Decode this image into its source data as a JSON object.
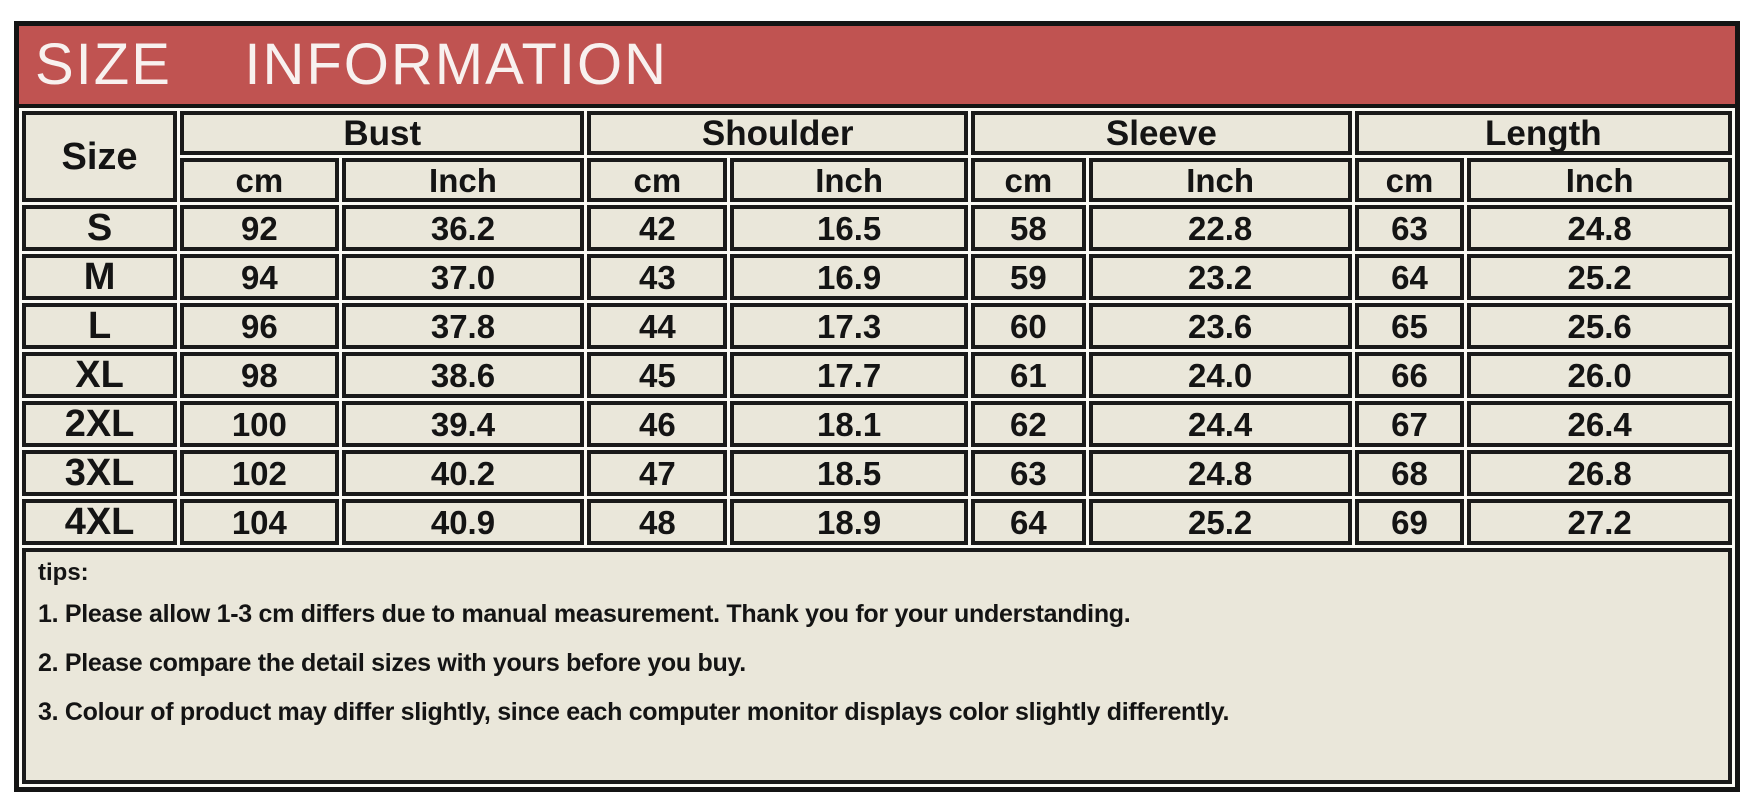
{
  "header": {
    "title": "SIZE    INFORMATION"
  },
  "table": {
    "corner_label": "Size",
    "groups": [
      "Bust",
      "Shoulder",
      "Sleeve",
      "Length"
    ],
    "units": [
      "cm",
      "Inch",
      "cm",
      "Inch",
      "cm",
      "Inch",
      "cm",
      "Inch"
    ],
    "rows": [
      {
        "size": "S",
        "cells": [
          "92",
          "36.2",
          "42",
          "16.5",
          "58",
          "22.8",
          "63",
          "24.8"
        ]
      },
      {
        "size": "M",
        "cells": [
          "94",
          "37.0",
          "43",
          "16.9",
          "59",
          "23.2",
          "64",
          "25.2"
        ]
      },
      {
        "size": "L",
        "cells": [
          "96",
          "37.8",
          "44",
          "17.3",
          "60",
          "23.6",
          "65",
          "25.6"
        ]
      },
      {
        "size": "XL",
        "cells": [
          "98",
          "38.6",
          "45",
          "17.7",
          "61",
          "24.0",
          "66",
          "26.0"
        ]
      },
      {
        "size": "2XL",
        "cells": [
          "100",
          "39.4",
          "46",
          "18.1",
          "62",
          "24.4",
          "67",
          "26.4"
        ]
      },
      {
        "size": "3XL",
        "cells": [
          "102",
          "40.2",
          "47",
          "18.5",
          "63",
          "24.8",
          "68",
          "26.8"
        ]
      },
      {
        "size": "4XL",
        "cells": [
          "104",
          "40.9",
          "48",
          "18.9",
          "64",
          "25.2",
          "69",
          "27.2"
        ]
      }
    ]
  },
  "tips": {
    "heading": "tips:",
    "items": [
      "1. Please allow 1-3 cm differs due to manual measurement. Thank you for your understanding.",
      "2. Please compare the detail sizes with yours before you buy.",
      "3. Colour of product may differ slightly, since each computer monitor displays color slightly differently."
    ]
  },
  "colors": {
    "accent_red": "#c05351",
    "cell_background": "#eae7da",
    "border_black": "#141414",
    "title_text": "#f8f1ef"
  }
}
